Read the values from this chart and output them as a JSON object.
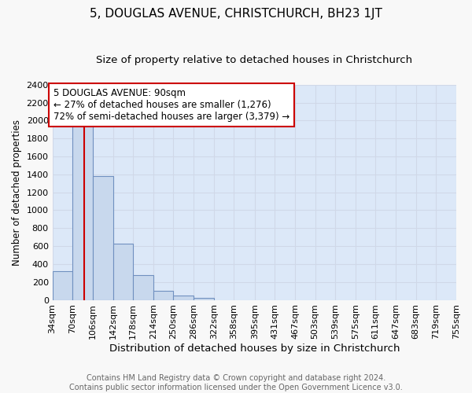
{
  "title": "5, DOUGLAS AVENUE, CHRISTCHURCH, BH23 1JT",
  "subtitle": "Size of property relative to detached houses in Christchurch",
  "xlabel": "Distribution of detached houses by size in Christchurch",
  "ylabel": "Number of detached properties",
  "footer_line1": "Contains HM Land Registry data © Crown copyright and database right 2024.",
  "footer_line2": "Contains public sector information licensed under the Open Government Licence v3.0.",
  "bin_labels": [
    "34sqm",
    "70sqm",
    "106sqm",
    "142sqm",
    "178sqm",
    "214sqm",
    "250sqm",
    "286sqm",
    "322sqm",
    "358sqm",
    "395sqm",
    "431sqm",
    "467sqm",
    "503sqm",
    "539sqm",
    "575sqm",
    "611sqm",
    "647sqm",
    "683sqm",
    "719sqm",
    "755sqm"
  ],
  "bin_edges": [
    34,
    70,
    106,
    142,
    178,
    214,
    250,
    286,
    322,
    358,
    395,
    431,
    467,
    503,
    539,
    575,
    611,
    647,
    683,
    719,
    755
  ],
  "bar_heights": [
    320,
    1950,
    1380,
    630,
    280,
    100,
    45,
    25,
    0,
    0,
    0,
    0,
    0,
    0,
    0,
    0,
    0,
    0,
    0,
    0
  ],
  "bar_color": "#c8d8ed",
  "bar_edge_color": "#7090c0",
  "property_size": 90,
  "red_line_color": "#cc0000",
  "annotation_line1": "5 DOUGLAS AVENUE: 90sqm",
  "annotation_line2": "← 27% of detached houses are smaller (1,276)",
  "annotation_line3": "72% of semi-detached houses are larger (3,379) →",
  "annotation_box_facecolor": "#ffffff",
  "annotation_box_edgecolor": "#cc0000",
  "ylim": [
    0,
    2400
  ],
  "ytick_step": 200,
  "grid_color": "#d0d8e8",
  "plot_bg_color": "#dce8f8",
  "fig_bg_color": "#f8f8f8",
  "title_fontsize": 11,
  "subtitle_fontsize": 9.5,
  "xlabel_fontsize": 9.5,
  "ylabel_fontsize": 8.5,
  "tick_fontsize": 8,
  "annot_fontsize": 8.5,
  "footer_fontsize": 7
}
